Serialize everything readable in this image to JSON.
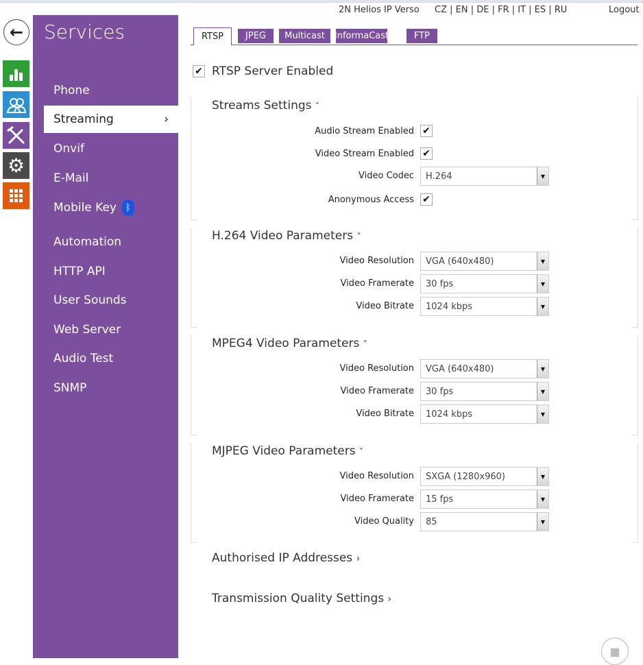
{
  "header": {
    "device": "2N Helios IP Verso",
    "languages": "CZ | EN | DE | FR | IT | ES | RU",
    "logout": "Logout"
  },
  "left_tiles": [
    {
      "icon": "chart-icon",
      "color": "#2f9e36"
    },
    {
      "icon": "users-icon",
      "color": "#2b8fd1"
    },
    {
      "icon": "tools-icon",
      "color": "#7b4f9d"
    },
    {
      "icon": "gear-icon",
      "color": "#4a4a4a"
    },
    {
      "icon": "grid-icon",
      "color": "#e05a0f"
    }
  ],
  "sidebar": {
    "title": "Services",
    "items": [
      "Phone",
      "Streaming",
      "Onvif",
      "E-Mail",
      "Mobile Key",
      "Automation",
      "HTTP API",
      "User Sounds",
      "Web Server",
      "Audio Test",
      "SNMP"
    ],
    "active": "Streaming"
  },
  "tabs": [
    "RTSP",
    "JPEG",
    "Multicast",
    "InformaCast",
    "FTP"
  ],
  "active_tab": "RTSP",
  "rtsp_enabled": {
    "label": "RTSP Server Enabled",
    "checked": true
  },
  "streams": {
    "title": "Streams Settings",
    "audio": "Audio Stream Enabled",
    "video": "Video Stream Enabled",
    "codec_label": "Video Codec",
    "codec": "H.264",
    "anon": "Anonymous Access"
  },
  "h264": {
    "title": "H.264 Video Parameters",
    "res_label": "Video Resolution",
    "res": "VGA (640x480)",
    "fps_label": "Video Framerate",
    "fps": "30 fps",
    "br_label": "Video Bitrate",
    "br": "1024 kbps"
  },
  "mpeg4": {
    "title": "MPEG4 Video Parameters",
    "res_label": "Video Resolution",
    "res": "VGA (640x480)",
    "fps_label": "Video Framerate",
    "fps": "30 fps",
    "br_label": "Video Bitrate",
    "br": "1024 kbps"
  },
  "mjpeg": {
    "title": "MJPEG Video Parameters",
    "res_label": "Video Resolution",
    "res": "SXGA (1280x960)",
    "fps_label": "Video Framerate",
    "fps": "15 fps",
    "q_label": "Video Quality",
    "q": "85"
  },
  "links": {
    "auth_ip": "Authorised IP Addresses",
    "tq": "Transmission Quality Settings"
  },
  "glyphs": {
    "chev_down": "˅",
    "chev_right": "›",
    "check": "✔",
    "arrow": "▼"
  }
}
